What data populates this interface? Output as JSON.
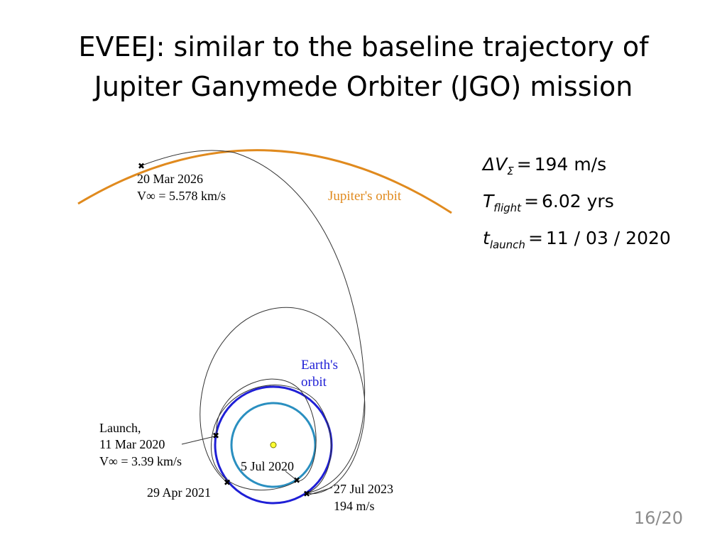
{
  "slide": {
    "title_line1": "EVEEJ: similar to the baseline trajectory of",
    "title_line2": "Jupiter Ganymede Orbiter (JGO) mission",
    "page_number": "16/20"
  },
  "params": {
    "delta_v": {
      "symbol": "ΔV",
      "subscript": "Σ",
      "value": "194 m/s"
    },
    "flight_time": {
      "symbol": "T",
      "subscript": "flight",
      "value": "6.02 yrs"
    },
    "launch_date": {
      "symbol": "t",
      "subscript": "launch",
      "value": "11 / 03 / 2020"
    }
  },
  "diagram": {
    "colors": {
      "jupiter_orbit": "#e08a1e",
      "earth_orbit": "#1f1fd6",
      "venus_orbit": "#2a8fc0",
      "trajectory": "#333333",
      "sun": "#ffff33"
    },
    "labels": {
      "jupiter_orbit": "Jupiter's orbit",
      "earth_orbit_1": "Earth's",
      "earth_orbit_2": "orbit",
      "arrival_date": "20 Mar 2026",
      "arrival_vinf": "V∞ = 5.578 km/s",
      "launch_1": "Launch,",
      "launch_2": "11 Mar 2020",
      "launch_vinf": "V∞ = 3.39 km/s",
      "venus_flyby": "5 Jul 2020",
      "earth_flyby_1": "29 Apr 2021",
      "dsm_date": "27 Jul 2023",
      "dsm_dv": "194 m/s"
    }
  }
}
